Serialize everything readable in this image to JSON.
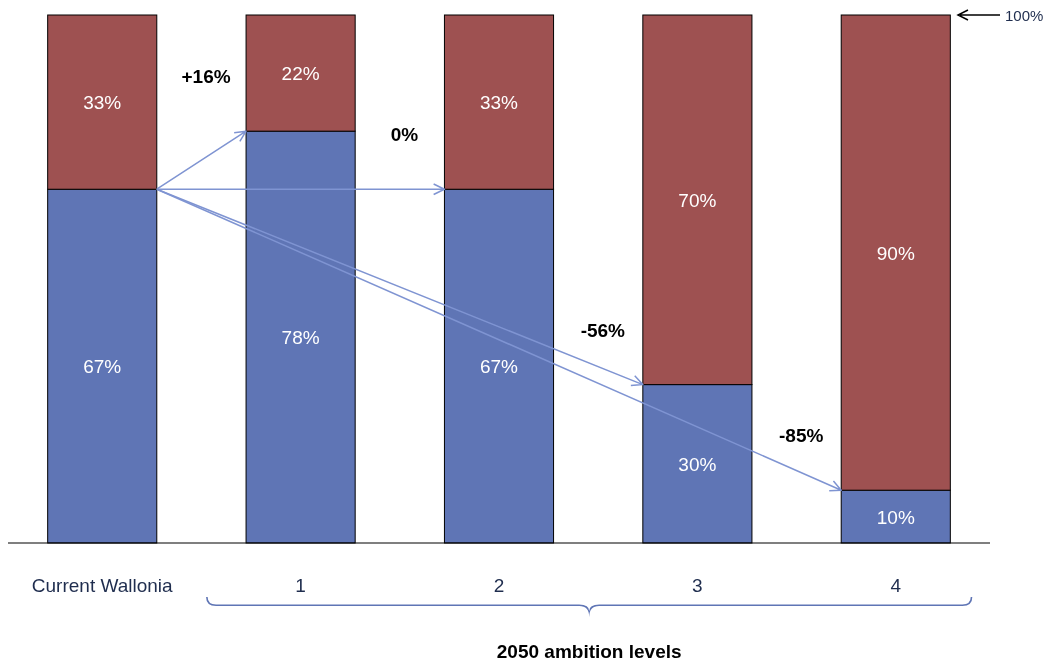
{
  "chart_data": {
    "type": "bar",
    "stacked": true,
    "categories": [
      "Current Wallonia",
      "1",
      "2",
      "3",
      "4"
    ],
    "series": [
      {
        "color": "#5f75b5",
        "values": [
          67,
          78,
          67,
          30,
          10
        ],
        "value_labels": [
          "67%",
          "78%",
          "67%",
          "30%",
          "10%"
        ]
      },
      {
        "color": "#9e5151",
        "values": [
          33,
          22,
          33,
          70,
          90
        ],
        "value_labels": [
          "33%",
          "22%",
          "33%",
          "70%",
          "90%"
        ]
      }
    ],
    "tick_labels": "x",
    "xlabel": "2050 ambition levels",
    "annotations": [
      "+16%",
      "0%",
      "-56%",
      "-85%",
      "100%"
    ]
  }
}
